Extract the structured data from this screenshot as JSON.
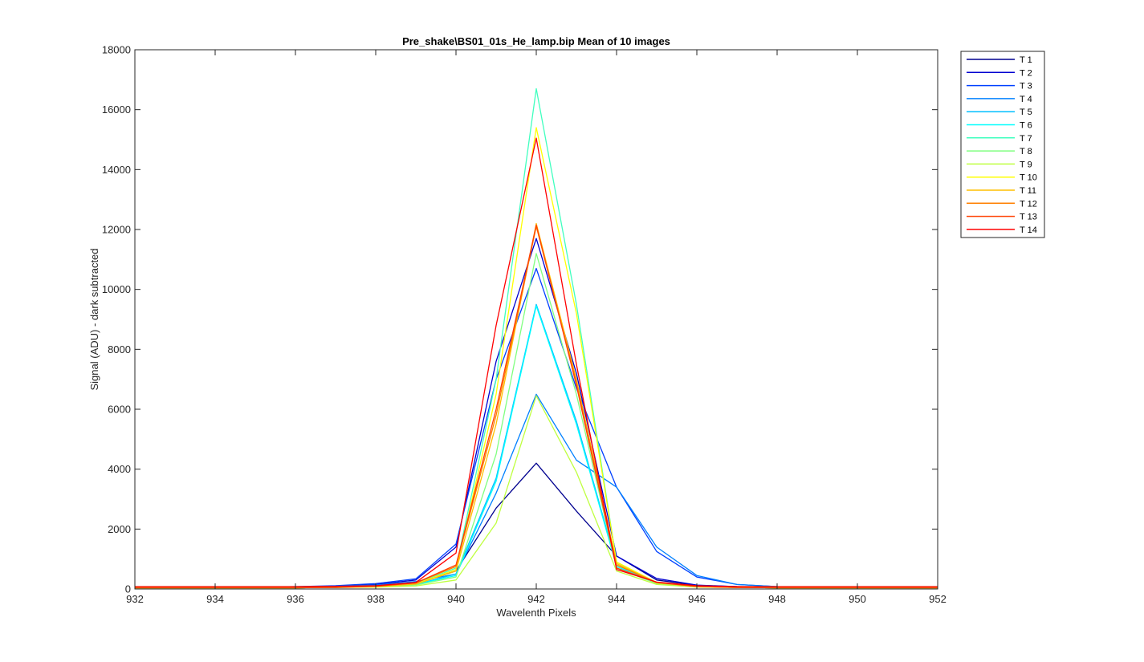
{
  "chart_data": {
    "type": "line",
    "title": "Pre_shake\\BS01_01s_He_lamp.bip  Mean of 10 images",
    "xlabel": "Wavelenth Pixels",
    "ylabel": "Signal (ADU) - dark subtracted",
    "xlim": [
      932,
      952
    ],
    "ylim": [
      0,
      18000
    ],
    "xticks": [
      "932",
      "934",
      "936",
      "938",
      "940",
      "942",
      "944",
      "946",
      "948",
      "950",
      "952"
    ],
    "yticks": [
      "0",
      "2000",
      "4000",
      "6000",
      "8000",
      "10000",
      "12000",
      "14000",
      "16000",
      "18000"
    ],
    "legend_position": "outside-top-right",
    "grid": false,
    "x": [
      932,
      933,
      934,
      935,
      936,
      937,
      938,
      939,
      940,
      941,
      942,
      943,
      944,
      945,
      946,
      947,
      948,
      949,
      950,
      951,
      952
    ],
    "series": [
      {
        "name": "T 1",
        "color": "#00008f",
        "values": [
          60,
          60,
          60,
          60,
          70,
          80,
          100,
          180,
          600,
          2700,
          4200,
          2600,
          1100,
          300,
          120,
          80,
          60,
          60,
          60,
          60,
          60
        ]
      },
      {
        "name": "T 2",
        "color": "#0000d0",
        "values": [
          60,
          60,
          60,
          60,
          70,
          90,
          150,
          300,
          1400,
          7600,
          11700,
          7200,
          1100,
          350,
          130,
          80,
          60,
          60,
          60,
          60,
          60
        ]
      },
      {
        "name": "T 3",
        "color": "#0040ff",
        "values": [
          60,
          60,
          60,
          60,
          80,
          110,
          180,
          340,
          1500,
          7000,
          10700,
          6700,
          3400,
          1250,
          400,
          150,
          80,
          60,
          60,
          60,
          60
        ]
      },
      {
        "name": "T 4",
        "color": "#0080ff",
        "values": [
          60,
          60,
          60,
          60,
          70,
          90,
          130,
          250,
          500,
          3200,
          6500,
          4300,
          3400,
          1400,
          450,
          150,
          80,
          60,
          60,
          60,
          60
        ]
      },
      {
        "name": "T 5",
        "color": "#00bfff",
        "values": [
          40,
          40,
          40,
          40,
          40,
          50,
          70,
          150,
          500,
          3700,
          9500,
          5600,
          800,
          200,
          80,
          50,
          40,
          40,
          40,
          40,
          40
        ]
      },
      {
        "name": "T 6",
        "color": "#00ffff",
        "values": [
          40,
          40,
          40,
          40,
          40,
          50,
          70,
          150,
          450,
          3600,
          9450,
          5500,
          750,
          200,
          80,
          50,
          40,
          40,
          40,
          40,
          40
        ]
      },
      {
        "name": "T 7",
        "color": "#40ffbf",
        "values": [
          40,
          40,
          40,
          40,
          40,
          50,
          80,
          170,
          700,
          7000,
          16700,
          9500,
          900,
          200,
          80,
          50,
          40,
          40,
          40,
          40,
          40
        ]
      },
      {
        "name": "T 8",
        "color": "#80ff80",
        "values": [
          40,
          40,
          40,
          40,
          40,
          50,
          70,
          130,
          400,
          4500,
          11200,
          6500,
          700,
          180,
          70,
          50,
          40,
          40,
          40,
          40,
          40
        ]
      },
      {
        "name": "T 9",
        "color": "#bfff40",
        "values": [
          40,
          40,
          40,
          40,
          40,
          50,
          60,
          100,
          300,
          2200,
          6450,
          3900,
          600,
          150,
          60,
          50,
          40,
          40,
          40,
          40,
          40
        ]
      },
      {
        "name": "T 10",
        "color": "#ffff00",
        "values": [
          40,
          40,
          40,
          40,
          40,
          50,
          80,
          170,
          650,
          6500,
          15400,
          9200,
          900,
          220,
          80,
          50,
          40,
          40,
          40,
          40,
          40
        ]
      },
      {
        "name": "T 11",
        "color": "#ffbf00",
        "values": [
          40,
          40,
          40,
          40,
          40,
          50,
          80,
          160,
          600,
          5500,
          12200,
          7000,
          850,
          200,
          80,
          50,
          40,
          40,
          40,
          40,
          40
        ]
      },
      {
        "name": "T 12",
        "color": "#ff8000",
        "values": [
          40,
          40,
          40,
          40,
          40,
          50,
          90,
          200,
          750,
          5800,
          12100,
          6900,
          800,
          220,
          80,
          50,
          40,
          40,
          40,
          40,
          40
        ]
      },
      {
        "name": "T 13",
        "color": "#ff4000",
        "values": [
          40,
          40,
          40,
          40,
          40,
          50,
          90,
          200,
          800,
          6000,
          12150,
          6800,
          700,
          220,
          80,
          50,
          40,
          40,
          40,
          40,
          40
        ]
      },
      {
        "name": "T 14",
        "color": "#ff0000",
        "values": [
          80,
          80,
          80,
          80,
          80,
          90,
          110,
          220,
          1200,
          8800,
          15050,
          7500,
          650,
          230,
          110,
          80,
          80,
          80,
          80,
          80,
          80
        ]
      }
    ]
  }
}
